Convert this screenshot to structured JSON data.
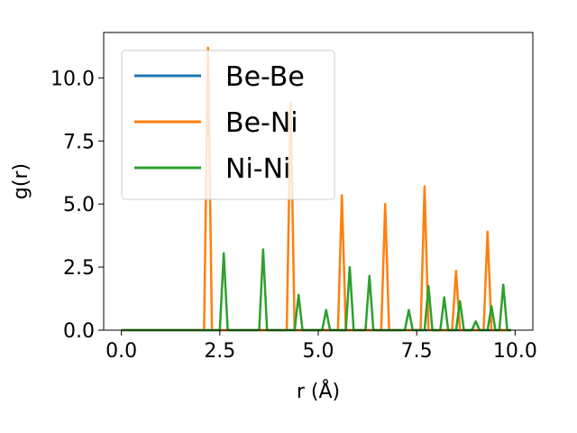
{
  "chart_data": {
    "type": "line",
    "title": "",
    "xlabel": "r (Å)",
    "ylabel": "g(r)",
    "xlim": [
      -0.45,
      10.45
    ],
    "ylim": [
      0,
      11.8
    ],
    "xticks": [
      "0.0",
      "2.5",
      "5.0",
      "7.5",
      "10.0"
    ],
    "yticks": [
      "0.0",
      "2.5",
      "5.0",
      "7.5",
      "10.0"
    ],
    "grid": false,
    "legend": "upper-left",
    "series": [
      {
        "name": "Be-Be",
        "color": "#1f77b4",
        "peaks": []
      },
      {
        "name": "Be-Ni",
        "color": "#ff7f0e",
        "peaks": [
          {
            "r": 2.2,
            "g": 11.2
          },
          {
            "r": 4.3,
            "g": 9.0
          },
          {
            "r": 5.6,
            "g": 5.35
          },
          {
            "r": 6.7,
            "g": 5.0
          },
          {
            "r": 7.7,
            "g": 5.7
          },
          {
            "r": 8.5,
            "g": 2.35
          },
          {
            "r": 9.3,
            "g": 3.9
          }
        ]
      },
      {
        "name": "Ni-Ni",
        "color": "#2ca02c",
        "peaks": [
          {
            "r": 2.6,
            "g": 3.05
          },
          {
            "r": 3.6,
            "g": 3.2
          },
          {
            "r": 4.5,
            "g": 1.4
          },
          {
            "r": 5.2,
            "g": 0.8
          },
          {
            "r": 5.8,
            "g": 2.5
          },
          {
            "r": 6.3,
            "g": 2.15
          },
          {
            "r": 7.3,
            "g": 0.8
          },
          {
            "r": 7.8,
            "g": 1.75
          },
          {
            "r": 8.2,
            "g": 1.3
          },
          {
            "r": 8.6,
            "g": 1.15
          },
          {
            "r": 9.0,
            "g": 0.35
          },
          {
            "r": 9.4,
            "g": 0.95
          },
          {
            "r": 9.7,
            "g": 1.8
          }
        ]
      }
    ],
    "r_range": [
      0.0,
      9.9
    ],
    "r_step": 0.1
  }
}
